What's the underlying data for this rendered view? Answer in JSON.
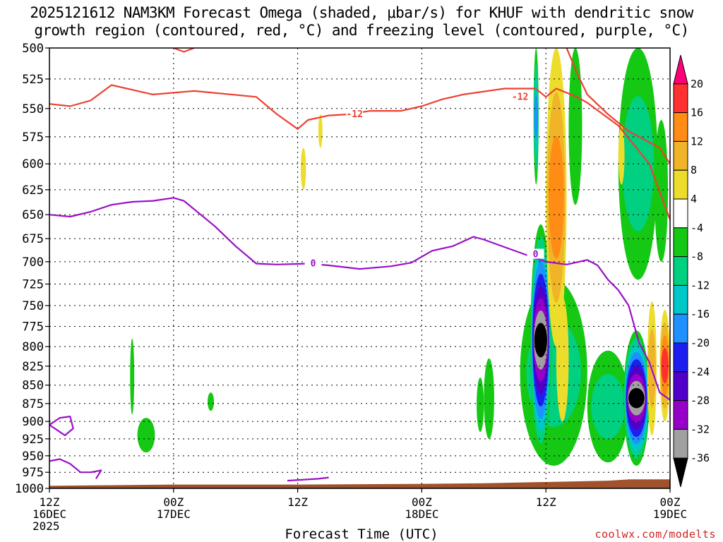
{
  "title": {
    "line1": "2025121612 NAM3KM Forecast Omega (shaded, μbar/s) for KHUF with dendritic snow",
    "line2": "growth region (contoured, red, °C) and freezing level (contoured, purple, °C)"
  },
  "credit": "coolwx.com/modelts",
  "chart_data": {
    "type": "heatmap",
    "title": "2025121612 NAM3KM Forecast Omega (shaded, μbar/s) for KHUF with dendritic snow growth region (contoured, red, °C) and freezing level (contoured, purple, °C)",
    "xlabel": "Forecast Time (UTC)",
    "ylabel": "",
    "x_ticks": [
      {
        "hour": 0,
        "label": "12Z",
        "sub": "16DEC",
        "sub2": "2025"
      },
      {
        "hour": 12,
        "label": "00Z",
        "sub": "17DEC",
        "sub2": ""
      },
      {
        "hour": 24,
        "label": "12Z",
        "sub": "",
        "sub2": ""
      },
      {
        "hour": 36,
        "label": "00Z",
        "sub": "18DEC",
        "sub2": ""
      },
      {
        "hour": 48,
        "label": "12Z",
        "sub": "",
        "sub2": ""
      },
      {
        "hour": 60,
        "label": "00Z",
        "sub": "19DEC",
        "sub2": ""
      }
    ],
    "x_range_hours": [
      0,
      60
    ],
    "y_range_hpa": [
      1000,
      500
    ],
    "y_scale": "log-pressure (inverted)",
    "y_ticks": [
      500,
      525,
      550,
      575,
      600,
      625,
      650,
      675,
      700,
      725,
      750,
      775,
      800,
      825,
      850,
      875,
      900,
      925,
      950,
      975,
      1000
    ],
    "grid": true,
    "colorbar": {
      "levels": [
        20,
        16,
        12,
        8,
        4,
        -4,
        -8,
        -12,
        -16,
        -20,
        -24,
        -28,
        -32,
        -36
      ],
      "colors": [
        "#ff0077",
        "#ff3030",
        "#ff8c14",
        "#f0b428",
        "#ecdc2c",
        "#ffffff",
        "#14c814",
        "#00d080",
        "#00c8c8",
        "#1e90ff",
        "#1e1ef0",
        "#5000c8",
        "#9600c8",
        "#a0a0a0",
        "#000000"
      ]
    },
    "contour_labels": {
      "red_upper": "-12",
      "red_lower": "-12",
      "purple": "0"
    },
    "red_contour_upper": [
      [
        0,
        546
      ],
      [
        2,
        548
      ],
      [
        4,
        543
      ],
      [
        6,
        530
      ],
      [
        8,
        534
      ],
      [
        10,
        538
      ],
      [
        14,
        535
      ],
      [
        20,
        540
      ],
      [
        22,
        555
      ],
      [
        24,
        568
      ],
      [
        25,
        560
      ],
      [
        27,
        556
      ],
      [
        29,
        555
      ],
      [
        31,
        552
      ],
      [
        34,
        552
      ],
      [
        36,
        548
      ],
      [
        38,
        542
      ],
      [
        40,
        538
      ],
      [
        44,
        533
      ],
      [
        47,
        533
      ],
      [
        48,
        540
      ],
      [
        49,
        533
      ],
      [
        51,
        540
      ],
      [
        52,
        545
      ],
      [
        55,
        565
      ],
      [
        58,
        600
      ],
      [
        60,
        655
      ]
    ],
    "red_contour_top": [
      [
        50,
        500
      ],
      [
        51,
        520
      ],
      [
        52,
        538
      ],
      [
        54,
        555
      ],
      [
        56,
        570
      ],
      [
        59,
        585
      ],
      [
        60,
        600
      ]
    ],
    "purple_contour": [
      [
        0,
        650
      ],
      [
        2,
        652
      ],
      [
        4,
        647
      ],
      [
        6,
        640
      ],
      [
        8,
        637
      ],
      [
        10,
        636
      ],
      [
        12,
        633
      ],
      [
        13,
        636
      ],
      [
        16,
        662
      ],
      [
        18,
        683
      ],
      [
        20,
        702
      ],
      [
        22,
        703
      ],
      [
        25,
        702
      ],
      [
        27,
        704
      ],
      [
        30,
        708
      ],
      [
        33,
        705
      ],
      [
        35,
        701
      ],
      [
        37,
        688
      ],
      [
        39,
        683
      ],
      [
        41,
        673
      ],
      [
        42,
        676
      ],
      [
        44,
        684
      ],
      [
        46,
        692
      ],
      [
        48,
        700
      ],
      [
        50,
        703
      ],
      [
        52,
        698
      ],
      [
        53,
        704
      ],
      [
        54,
        720
      ],
      [
        55,
        732
      ],
      [
        56,
        750
      ],
      [
        57,
        795
      ],
      [
        58,
        820
      ],
      [
        59,
        860
      ],
      [
        60,
        870
      ]
    ],
    "omega_features": [
      {
        "hour_range": [
          46.5,
          48.5
        ],
        "p_range": [
          660,
          950
        ],
        "min": -36,
        "kind": "upward"
      },
      {
        "hour_range": [
          55.8,
          57.6
        ],
        "p_range": [
          790,
          965
        ],
        "min": -36,
        "kind": "upward"
      },
      {
        "hour_range": [
          48.2,
          49.4
        ],
        "p_range": [
          500,
          790
        ],
        "max": 16,
        "kind": "downward"
      },
      {
        "hour_range": [
          59.0,
          60.0
        ],
        "p_range": [
          760,
          900
        ],
        "max": 16,
        "kind": "downward"
      },
      {
        "hour_range": [
          8.5,
          10.2
        ],
        "p_range": [
          895,
          945
        ],
        "min": -8,
        "kind": "upward"
      }
    ]
  }
}
